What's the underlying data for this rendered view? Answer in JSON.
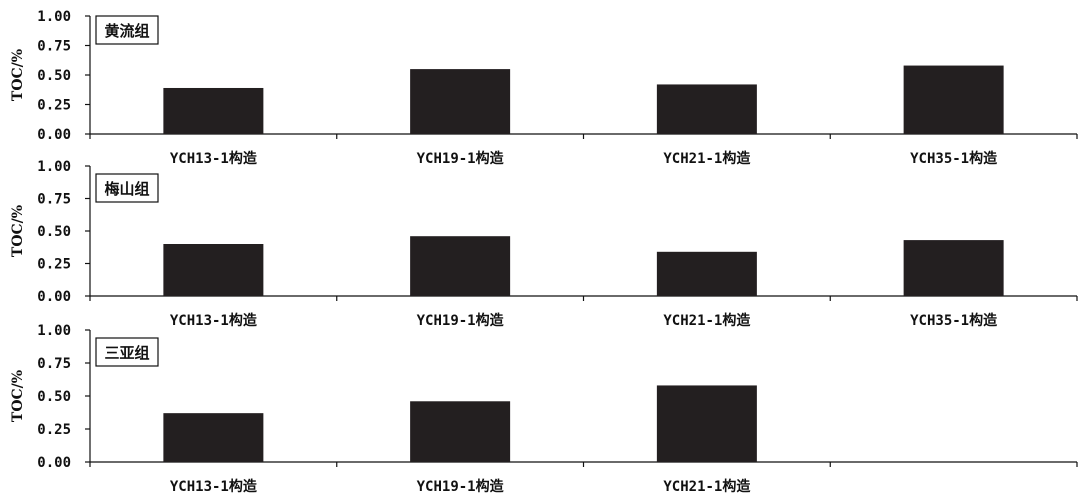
{
  "chart_data": [
    {
      "type": "bar",
      "title": "黄流组",
      "ylabel": "TOC/%",
      "ylim": [
        0,
        1.0
      ],
      "yticks": [
        "0.00",
        "0.25",
        "0.50",
        "0.75",
        "1.00"
      ],
      "categories": [
        "YCH13-1构造",
        "YCH19-1构造",
        "YCH21-1构造",
        "YCH35-1构造"
      ],
      "values": [
        0.39,
        0.55,
        0.42,
        0.58
      ],
      "bar_color": "#231f20"
    },
    {
      "type": "bar",
      "title": "梅山组",
      "ylabel": "TOC/%",
      "ylim": [
        0,
        1.0
      ],
      "yticks": [
        "0.00",
        "0.25",
        "0.50",
        "0.75",
        "1.00"
      ],
      "categories": [
        "YCH13-1构造",
        "YCH19-1构造",
        "YCH21-1构造",
        "YCH35-1构造"
      ],
      "values": [
        0.4,
        0.46,
        0.34,
        0.43
      ],
      "bar_color": "#231f20"
    },
    {
      "type": "bar",
      "title": "三亚组",
      "ylabel": "TOC/%",
      "ylim": [
        0,
        1.0
      ],
      "yticks": [
        "0.00",
        "0.25",
        "0.50",
        "0.75",
        "1.00"
      ],
      "categories": [
        "YCH13-1构造",
        "YCH19-1构造",
        "YCH21-1构造",
        ""
      ],
      "values": [
        0.37,
        0.46,
        0.58,
        null
      ],
      "bar_color": "#231f20"
    }
  ]
}
